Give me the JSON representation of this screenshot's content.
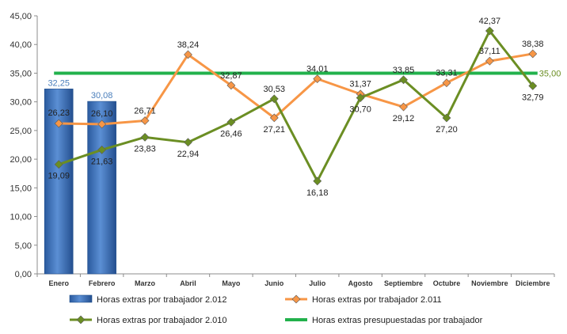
{
  "chart_data": {
    "type": "bar",
    "categories": [
      "Enero",
      "Febrero",
      "Marzo",
      "Abril",
      "Mayo",
      "Junio",
      "Julio",
      "Agosto",
      "Septiembre",
      "Octubre",
      "Noviembre",
      "Diciembre"
    ],
    "ylim": [
      0,
      45
    ],
    "yticks": [
      "0,00",
      "5,00",
      "10,00",
      "15,00",
      "20,00",
      "25,00",
      "30,00",
      "35,00",
      "40,00",
      "45,00"
    ],
    "grid": false,
    "legend_position": "bottom",
    "series": [
      {
        "name": "Horas extras por trabajador 2.012",
        "type": "bar",
        "color": "#3f70b8",
        "label_color": "#4a7ebb",
        "values": [
          32.25,
          30.08,
          null,
          null,
          null,
          null,
          null,
          null,
          null,
          null,
          null,
          null
        ],
        "labels": [
          "32,25",
          "30,08",
          "",
          "",
          "",
          "",
          "",
          "",
          "",
          "",
          "",
          ""
        ]
      },
      {
        "name": "Horas extras por trabajador 2.011",
        "type": "line",
        "color": "#f79646",
        "label_color": "#222222",
        "values": [
          26.23,
          26.1,
          26.71,
          38.24,
          32.87,
          27.21,
          34.01,
          31.37,
          29.12,
          33.31,
          37.11,
          38.38
        ],
        "labels": [
          "26,23",
          "26,10",
          "26,71",
          "38,24",
          "32,87",
          "27,21",
          "34,01",
          "31,37",
          "29,12",
          "33,31",
          "37,11",
          "38,38"
        ]
      },
      {
        "name": "Horas extras por trabajador 2.010",
        "type": "line",
        "color": "#6b8e23",
        "label_color": "#222222",
        "values": [
          19.09,
          21.63,
          23.83,
          22.94,
          26.46,
          30.53,
          16.18,
          30.7,
          33.85,
          27.2,
          42.37,
          32.79
        ],
        "labels": [
          "19,09",
          "21,63",
          "23,83",
          "22,94",
          "26,46",
          "30,53",
          "16,18",
          "30,70",
          "33,85",
          "27,20",
          "42,37",
          "32,79"
        ]
      },
      {
        "name": "Horas extras presupuestadas por trabajador",
        "type": "line",
        "color": "#22b14c",
        "label_color": "#6b8e23",
        "value": 35.0,
        "label": "35,00"
      }
    ]
  }
}
